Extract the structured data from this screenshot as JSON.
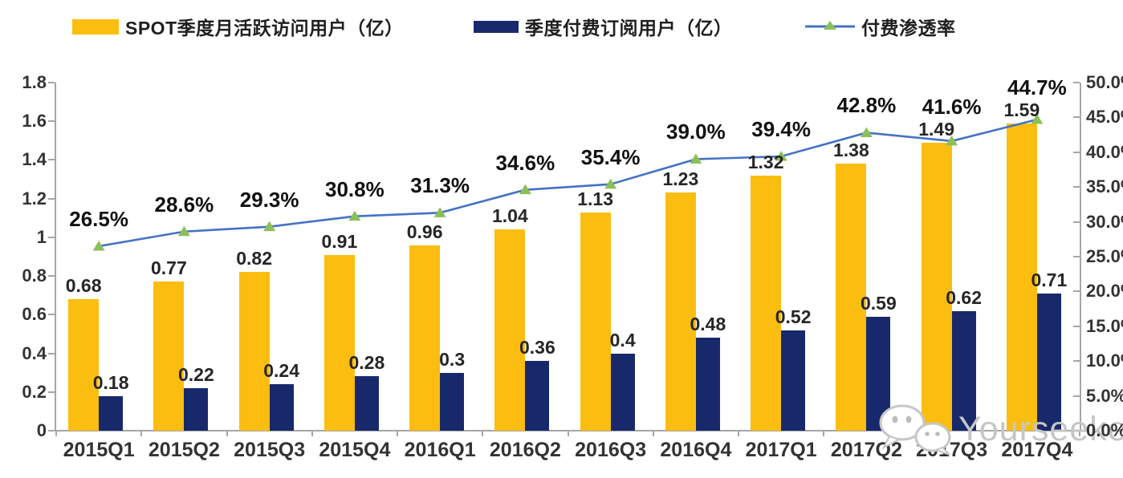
{
  "legend": [
    {
      "label": "SPOT季度月活跃访问用户（亿）",
      "color": "#FBBD0F",
      "type": "bar"
    },
    {
      "label": "季度付费订阅用户（亿）",
      "color": "#18296B",
      "type": "bar"
    },
    {
      "label": "付费渗透率",
      "color": "#4472C4",
      "marker_color": "#8CBF5A",
      "type": "line"
    }
  ],
  "watermark": {
    "text": "Yourseeker",
    "icon": "wechat-icon"
  },
  "colors": {
    "mau_bar": "#FBBD0F",
    "paid_bar": "#18296B",
    "line": "#4472C4",
    "marker": "#8CBF5A",
    "axis": "#A6A6A6",
    "label_text": "#262626",
    "watermark": "#C6C6C6"
  },
  "chart_data": {
    "type": "bar",
    "subtype": "grouped bars with overlay line on secondary axis",
    "categories": [
      "2015Q1",
      "2015Q2",
      "2015Q3",
      "2015Q4",
      "2016Q1",
      "2016Q2",
      "2016Q3",
      "2016Q4",
      "2017Q1",
      "2017Q2",
      "2017Q3",
      "2017Q4"
    ],
    "series": [
      {
        "name": "SPOT季度月活跃访问用户（亿）",
        "type": "bar",
        "axis": "left",
        "values": [
          0.68,
          0.77,
          0.82,
          0.91,
          0.96,
          1.04,
          1.13,
          1.23,
          1.32,
          1.38,
          1.49,
          1.59
        ],
        "labels": [
          "0.68",
          "0.77",
          "0.82",
          "0.91",
          "0.96",
          "1.04",
          "1.13",
          "1.23",
          "1.32",
          "1.38",
          "1.49",
          "1.59"
        ]
      },
      {
        "name": "季度付费订阅用户（亿）",
        "type": "bar",
        "axis": "left",
        "values": [
          0.18,
          0.22,
          0.24,
          0.28,
          0.3,
          0.36,
          0.4,
          0.48,
          0.52,
          0.59,
          0.62,
          0.71
        ],
        "labels": [
          "0.18",
          "0.22",
          "0.24",
          "0.28",
          "0.3",
          "0.36",
          "0.4",
          "0.48",
          "0.52",
          "0.59",
          "0.62",
          "0.71"
        ]
      },
      {
        "name": "付费渗透率",
        "type": "line",
        "axis": "right",
        "marker": "triangle",
        "values": [
          26.5,
          28.6,
          29.3,
          30.8,
          31.3,
          34.6,
          35.4,
          39.0,
          39.4,
          42.8,
          41.6,
          44.7
        ],
        "labels": [
          "26.5%",
          "28.6%",
          "29.3%",
          "30.8%",
          "31.3%",
          "34.6%",
          "35.4%",
          "39.0%",
          "39.4%",
          "42.8%",
          "41.6%",
          "44.7%"
        ]
      }
    ],
    "left_axis": {
      "min": 0,
      "max": 1.8,
      "step": 0.2,
      "ticks": [
        "1.8",
        "1.6",
        "1.4",
        "1.2",
        "1",
        "0.8",
        "0.6",
        "0.4",
        "0.2",
        "0"
      ]
    },
    "right_axis": {
      "min": 0,
      "max": 50,
      "step": 5,
      "ticks": [
        "50.0%",
        "45.0%",
        "40.0%",
        "35.0%",
        "30.0%",
        "25.0%",
        "20.0%",
        "15.0%",
        "10.0%",
        "5.0%",
        "0.0%"
      ]
    },
    "grid": false,
    "legend_position": "top"
  }
}
